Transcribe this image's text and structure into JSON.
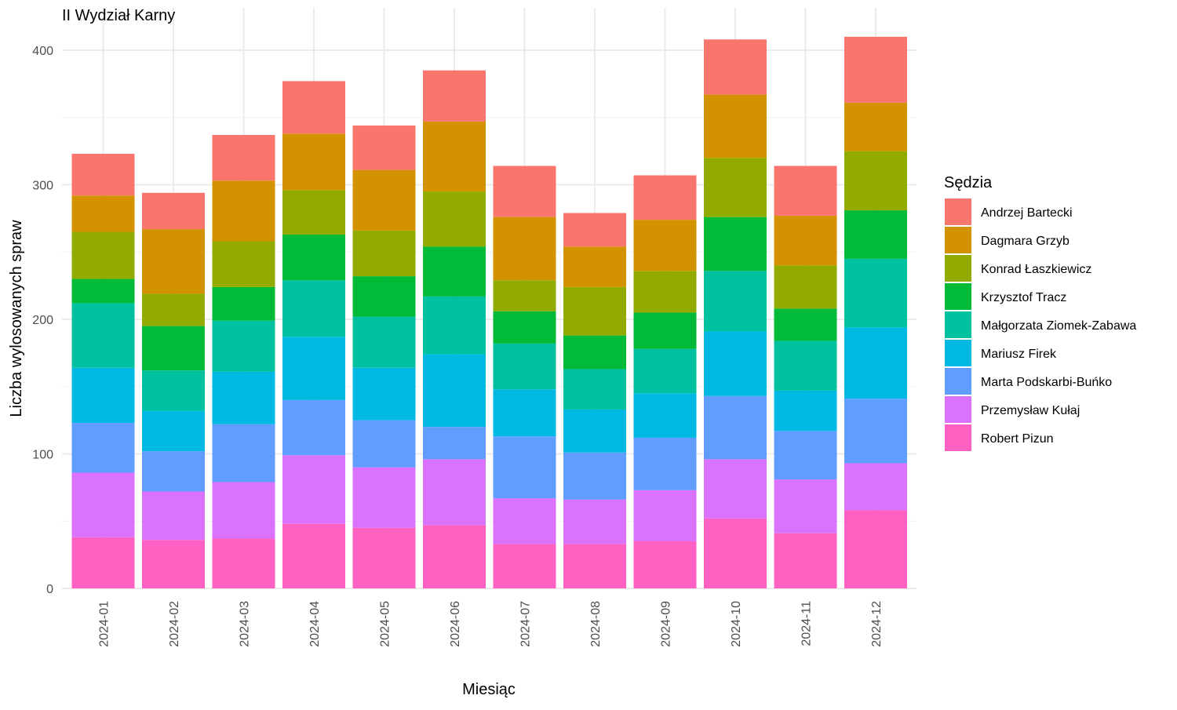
{
  "chart_data": {
    "type": "bar",
    "stacked": true,
    "title": "II Wydział Karny",
    "xlabel": "Miesiąc",
    "ylabel": "Liczba wylosowanych spraw",
    "ylim": [
      0,
      420
    ],
    "yticks": [
      0,
      100,
      200,
      300,
      400
    ],
    "grid": true,
    "legend_title": "Sędzia",
    "legend_position": "right",
    "categories": [
      "2024-01",
      "2024-02",
      "2024-03",
      "2024-04",
      "2024-05",
      "2024-06",
      "2024-07",
      "2024-08",
      "2024-09",
      "2024-10",
      "2024-11",
      "2024-12"
    ],
    "series": [
      {
        "name": "Robert Pizun",
        "color": "#FF61C3",
        "values": [
          38,
          36,
          37,
          48,
          45,
          47,
          33,
          33,
          35,
          52,
          41,
          58
        ]
      },
      {
        "name": "Przemysław Kułaj",
        "color": "#DB72FB",
        "values": [
          48,
          36,
          42,
          51,
          45,
          49,
          34,
          33,
          38,
          44,
          40,
          35
        ]
      },
      {
        "name": "Marta Podskarbi-Buńko",
        "color": "#619CFF",
        "values": [
          37,
          30,
          43,
          41,
          35,
          24,
          46,
          35,
          39,
          47,
          36,
          48
        ]
      },
      {
        "name": "Mariusz Firek",
        "color": "#00B9E3",
        "values": [
          41,
          30,
          39,
          47,
          39,
          54,
          35,
          32,
          33,
          48,
          30,
          53
        ]
      },
      {
        "name": "Małgorzata Ziomek-Zabawa",
        "color": "#00C19F",
        "values": [
          48,
          30,
          38,
          42,
          38,
          43,
          34,
          30,
          33,
          45,
          37,
          51
        ]
      },
      {
        "name": "Krzysztof Tracz",
        "color": "#00BA38",
        "values": [
          18,
          33,
          25,
          34,
          30,
          37,
          24,
          25,
          27,
          40,
          24,
          36
        ]
      },
      {
        "name": "Konrad Łaszkiewicz",
        "color": "#93AA00",
        "values": [
          35,
          24,
          34,
          33,
          34,
          41,
          23,
          36,
          31,
          44,
          32,
          44
        ]
      },
      {
        "name": "Dagmara Grzyb",
        "color": "#D39200",
        "values": [
          27,
          48,
          45,
          42,
          45,
          52,
          47,
          30,
          38,
          47,
          37,
          36
        ]
      },
      {
        "name": "Andrzej Bartecki",
        "color": "#F8766D",
        "values": [
          31,
          27,
          34,
          39,
          33,
          38,
          38,
          25,
          33,
          41,
          37,
          49
        ]
      }
    ],
    "legend_order": [
      "Andrzej Bartecki",
      "Dagmara Grzyb",
      "Konrad Łaszkiewicz",
      "Krzysztof Tracz",
      "Małgorzata Ziomek-Zabawa",
      "Mariusz Firek",
      "Marta Podskarbi-Buńko",
      "Przemysław Kułaj",
      "Robert Pizun"
    ]
  }
}
